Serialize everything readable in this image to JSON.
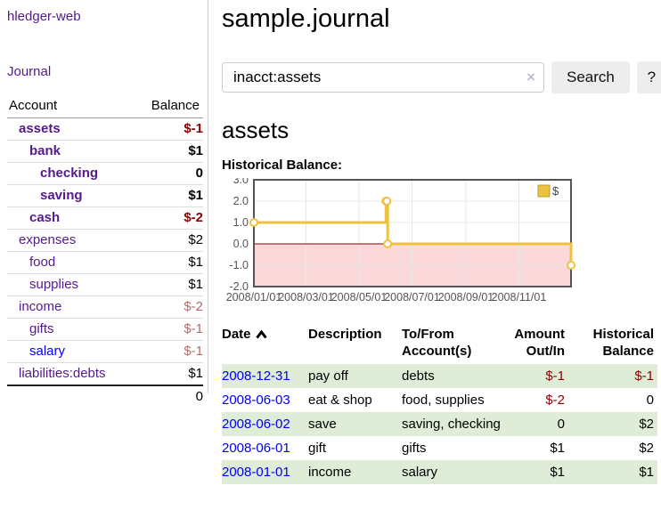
{
  "app": {
    "title": "hledger-web"
  },
  "sidebar": {
    "journal_link": "Journal",
    "accounts": {
      "header": {
        "account": "Account",
        "balance": "Balance"
      },
      "rows": [
        {
          "name": "assets",
          "balance": "$-1",
          "indent": 1,
          "bold": true,
          "balance_class": "neg-strong"
        },
        {
          "name": "bank",
          "balance": "$1",
          "indent": 2,
          "bold": true,
          "balance_class": ""
        },
        {
          "name": "checking",
          "balance": "0",
          "indent": 3,
          "bold": true,
          "balance_class": ""
        },
        {
          "name": "saving",
          "balance": "$1",
          "indent": 3,
          "bold": true,
          "balance_class": ""
        },
        {
          "name": "cash",
          "balance": "$-2",
          "indent": 2,
          "bold": true,
          "balance_class": "neg-strong"
        },
        {
          "name": "expenses",
          "balance": "$2",
          "indent": 1,
          "bold": false,
          "balance_class": ""
        },
        {
          "name": "food",
          "balance": "$1",
          "indent": 2,
          "bold": false,
          "balance_class": ""
        },
        {
          "name": "supplies",
          "balance": "$1",
          "indent": 2,
          "bold": false,
          "balance_class": ""
        },
        {
          "name": "income",
          "balance": "$-2",
          "indent": 1,
          "bold": false,
          "balance_class": "neg-dim"
        },
        {
          "name": "gifts",
          "balance": "$-1",
          "indent": 2,
          "bold": false,
          "balance_class": "neg-dim"
        },
        {
          "name": "salary",
          "balance": "$-1",
          "indent": 2,
          "bold": false,
          "balance_class": "neg-dim",
          "name_class": "blue"
        },
        {
          "name": "liabilities:debts",
          "balance": "$1",
          "indent": 1,
          "bold": false,
          "balance_class": ""
        }
      ],
      "total": "0"
    }
  },
  "main": {
    "title": "sample.journal",
    "search": {
      "value": "inacct:assets",
      "clear_icon": "×",
      "search_button": "Search",
      "help_button": "?"
    },
    "account_heading": "assets",
    "chart_heading": "Historical Balance:"
  },
  "chart_data": {
    "type": "line",
    "title": "Historical Balance",
    "step": true,
    "series": [
      {
        "name": "$",
        "color": "#edc240",
        "marker": "open-circle",
        "points": [
          {
            "date": "2008-01-01",
            "value": 1
          },
          {
            "date": "2008-06-01",
            "value": 2
          },
          {
            "date": "2008-06-02",
            "value": 2
          },
          {
            "date": "2008-06-03",
            "value": 0
          },
          {
            "date": "2008-12-31",
            "value": -1
          }
        ]
      }
    ],
    "ylim": [
      -2.0,
      3.0
    ],
    "x_range": [
      "2008-01-01",
      "2008-12-31"
    ],
    "y_tick_values": [
      3,
      2,
      1,
      0,
      -1,
      -2
    ],
    "y_tick_labels": [
      "3.0",
      "2.0",
      "1.0",
      "0.0",
      "-1.0",
      "-2.0"
    ],
    "x_tick_dates": [
      "2008-01-01",
      "2008-03-01",
      "2008-05-01",
      "2008-07-01",
      "2008-09-01",
      "2008-11-01"
    ],
    "x_tick_labels": [
      "2008/01/01",
      "2008/03/01",
      "2008/05/01",
      "2008/07/01",
      "2008/09/01",
      "2008/11/01"
    ],
    "grid": true,
    "legend_position": "top-right",
    "negative_region_fill": "#fbd9da",
    "zero_line_color": "#8b0000",
    "border_color": "#545454",
    "grid_color": "#e8e8e8",
    "tick_label_color": "#545454"
  },
  "transactions": {
    "headers": {
      "date": "Date",
      "sort_icon": "chevron-up",
      "description": "Description",
      "tofrom": "To/From\nAccount(s)",
      "amount": "Amount\nOut/In",
      "balance": "Historical\nBalance"
    },
    "rows": [
      {
        "date": "2008-12-31",
        "description": "pay off",
        "accounts": "debts",
        "amount": "$-1",
        "amount_negative": true,
        "balance": "$-1",
        "balance_negative": true,
        "shaded": true
      },
      {
        "date": "2008-06-03",
        "description": "eat & shop",
        "accounts": "food, supplies",
        "amount": "$-2",
        "amount_negative": true,
        "balance": "0",
        "balance_negative": false,
        "shaded": false
      },
      {
        "date": "2008-06-02",
        "description": "save",
        "accounts": "saving, checking",
        "amount": "0",
        "amount_negative": false,
        "balance": "$2",
        "balance_negative": false,
        "shaded": true
      },
      {
        "date": "2008-06-01",
        "description": "gift",
        "accounts": "gifts",
        "amount": "$1",
        "amount_negative": false,
        "balance": "$2",
        "balance_negative": false,
        "shaded": false
      },
      {
        "date": "2008-01-01",
        "description": "income",
        "accounts": "salary",
        "amount": "$1",
        "amount_negative": false,
        "balance": "$1",
        "balance_negative": false,
        "shaded": true
      }
    ]
  }
}
